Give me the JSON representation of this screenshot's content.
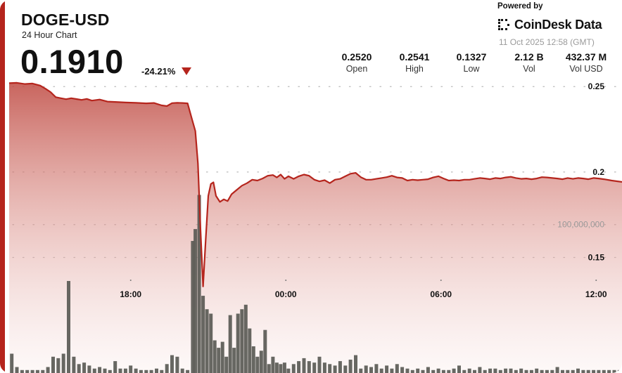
{
  "header": {
    "symbol": "DOGE-USD",
    "subtitle": "24 Hour Chart",
    "price": "0.1910",
    "change": "-24.21%",
    "change_direction": "down"
  },
  "branding": {
    "powered_by": "Powered by",
    "name": "CoinDesk Data",
    "timestamp": "11 Oct 2025 12:58 (GMT)"
  },
  "stats": [
    {
      "value": "0.2520",
      "label": "Open"
    },
    {
      "value": "0.2541",
      "label": "High"
    },
    {
      "value": "0.1327",
      "label": "Low"
    },
    {
      "value": "2.12 B",
      "label": "Vol"
    },
    {
      "value": "432.37 M",
      "label": "Vol USD"
    }
  ],
  "colors": {
    "accent": "#b5251d",
    "line": "#b5251d",
    "volume_bar": "#5a5a55"
  },
  "chart_data": {
    "type": "area",
    "title": "",
    "xlabel": "",
    "ylabel": "",
    "price_axis": {
      "ticks": [
        0.25,
        0.2,
        0.15
      ],
      "tick_labels": [
        "0.25",
        "0.2",
        "0.15"
      ],
      "ylim": [
        0.1095,
        0.2575
      ]
    },
    "volume_axis": {
      "ticks": [
        100000000
      ],
      "tick_labels": [
        "100,000,000"
      ],
      "ylim": [
        0,
        133000000
      ]
    },
    "x_ticks": [
      "18:00",
      "00:00",
      "06:00",
      "12:00"
    ],
    "x_tick_hours": [
      18,
      24,
      30,
      36
    ],
    "x_range_hours": [
      13.3,
      37.0
    ],
    "grid": true,
    "series": [
      {
        "values": [
          [
            13.3,
            0.252
          ],
          [
            13.6,
            0.2522
          ],
          [
            13.9,
            0.2515
          ],
          [
            14.2,
            0.2518
          ],
          [
            14.5,
            0.2506
          ],
          [
            14.7,
            0.2488
          ],
          [
            14.9,
            0.2468
          ],
          [
            15.1,
            0.2438
          ],
          [
            15.3,
            0.2432
          ],
          [
            15.5,
            0.2426
          ],
          [
            15.7,
            0.2432
          ],
          [
            15.9,
            0.2427
          ],
          [
            16.1,
            0.2422
          ],
          [
            16.3,
            0.2428
          ],
          [
            16.5,
            0.2418
          ],
          [
            16.8,
            0.2424
          ],
          [
            17.1,
            0.2412
          ],
          [
            17.4,
            0.241
          ],
          [
            17.8,
            0.2407
          ],
          [
            18.2,
            0.2405
          ],
          [
            18.6,
            0.2402
          ],
          [
            18.9,
            0.2404
          ],
          [
            19.2,
            0.239
          ],
          [
            19.4,
            0.2386
          ],
          [
            19.6,
            0.2403
          ],
          [
            19.8,
            0.2405
          ],
          [
            20.0,
            0.2404
          ],
          [
            20.2,
            0.2402
          ],
          [
            20.35,
            0.232
          ],
          [
            20.5,
            0.224
          ],
          [
            20.6,
            0.205
          ],
          [
            20.7,
            0.166
          ],
          [
            20.8,
            0.133
          ],
          [
            20.9,
            0.16
          ],
          [
            21.0,
            0.186
          ],
          [
            21.1,
            0.193
          ],
          [
            21.2,
            0.194
          ],
          [
            21.3,
            0.186
          ],
          [
            21.45,
            0.1825
          ],
          [
            21.6,
            0.184
          ],
          [
            21.75,
            0.183
          ],
          [
            21.9,
            0.187
          ],
          [
            22.1,
            0.1895
          ],
          [
            22.3,
            0.192
          ],
          [
            22.5,
            0.1935
          ],
          [
            22.7,
            0.1955
          ],
          [
            22.9,
            0.195
          ],
          [
            23.1,
            0.1962
          ],
          [
            23.3,
            0.1978
          ],
          [
            23.5,
            0.1982
          ],
          [
            23.65,
            0.1968
          ],
          [
            23.8,
            0.1985
          ],
          [
            23.95,
            0.196
          ],
          [
            24.1,
            0.1975
          ],
          [
            24.3,
            0.196
          ],
          [
            24.5,
            0.1975
          ],
          [
            24.7,
            0.1985
          ],
          [
            24.9,
            0.1978
          ],
          [
            25.1,
            0.1955
          ],
          [
            25.3,
            0.1945
          ],
          [
            25.5,
            0.1952
          ],
          [
            25.7,
            0.1935
          ],
          [
            25.9,
            0.1955
          ],
          [
            26.1,
            0.196
          ],
          [
            26.3,
            0.1975
          ],
          [
            26.5,
            0.199
          ],
          [
            26.7,
            0.1995
          ],
          [
            26.9,
            0.197
          ],
          [
            27.1,
            0.1955
          ],
          [
            27.3,
            0.1955
          ],
          [
            27.5,
            0.196
          ],
          [
            27.7,
            0.1965
          ],
          [
            27.9,
            0.197
          ],
          [
            28.1,
            0.1978
          ],
          [
            28.3,
            0.1968
          ],
          [
            28.5,
            0.1965
          ],
          [
            28.7,
            0.195
          ],
          [
            28.9,
            0.1955
          ],
          [
            29.1,
            0.1952
          ],
          [
            29.3,
            0.1955
          ],
          [
            29.5,
            0.1958
          ],
          [
            29.7,
            0.1968
          ],
          [
            29.9,
            0.1975
          ],
          [
            30.1,
            0.1962
          ],
          [
            30.3,
            0.195
          ],
          [
            30.5,
            0.1952
          ],
          [
            30.7,
            0.195
          ],
          [
            30.9,
            0.1955
          ],
          [
            31.1,
            0.1955
          ],
          [
            31.3,
            0.196
          ],
          [
            31.5,
            0.1965
          ],
          [
            31.7,
            0.1962
          ],
          [
            31.9,
            0.1958
          ],
          [
            32.1,
            0.1965
          ],
          [
            32.3,
            0.1962
          ],
          [
            32.5,
            0.1968
          ],
          [
            32.7,
            0.1972
          ],
          [
            32.9,
            0.1965
          ],
          [
            33.1,
            0.196
          ],
          [
            33.3,
            0.1962
          ],
          [
            33.5,
            0.1958
          ],
          [
            33.7,
            0.1962
          ],
          [
            33.9,
            0.197
          ],
          [
            34.1,
            0.1968
          ],
          [
            34.3,
            0.1965
          ],
          [
            34.5,
            0.1962
          ],
          [
            34.7,
            0.1958
          ],
          [
            34.9,
            0.1965
          ],
          [
            35.1,
            0.196
          ],
          [
            35.3,
            0.1965
          ],
          [
            35.5,
            0.1962
          ],
          [
            35.7,
            0.1958
          ],
          [
            35.9,
            0.1965
          ],
          [
            36.1,
            0.1962
          ],
          [
            36.3,
            0.1958
          ],
          [
            36.6,
            0.195
          ],
          [
            37.0,
            0.1942
          ]
        ]
      }
    ],
    "volume": [
      [
        13.4,
        13
      ],
      [
        13.6,
        4
      ],
      [
        13.8,
        2
      ],
      [
        14.0,
        2
      ],
      [
        14.2,
        2
      ],
      [
        14.4,
        2
      ],
      [
        14.6,
        2
      ],
      [
        14.8,
        4
      ],
      [
        15.0,
        11
      ],
      [
        15.2,
        10
      ],
      [
        15.4,
        13
      ],
      [
        15.6,
        62
      ],
      [
        15.8,
        11
      ],
      [
        16.0,
        6
      ],
      [
        16.2,
        7
      ],
      [
        16.4,
        5
      ],
      [
        16.6,
        3
      ],
      [
        16.8,
        4
      ],
      [
        17.0,
        3
      ],
      [
        17.2,
        2
      ],
      [
        17.4,
        8
      ],
      [
        17.6,
        3
      ],
      [
        17.8,
        3
      ],
      [
        18.0,
        5
      ],
      [
        18.2,
        3
      ],
      [
        18.4,
        2
      ],
      [
        18.6,
        2
      ],
      [
        18.8,
        2
      ],
      [
        19.0,
        3
      ],
      [
        19.2,
        2
      ],
      [
        19.4,
        6
      ],
      [
        19.6,
        12
      ],
      [
        19.8,
        11
      ],
      [
        20.0,
        3
      ],
      [
        20.2,
        2
      ],
      [
        20.4,
        89
      ],
      [
        20.5,
        97
      ],
      [
        20.65,
        120
      ],
      [
        20.8,
        52
      ],
      [
        20.95,
        43
      ],
      [
        21.1,
        40
      ],
      [
        21.25,
        22
      ],
      [
        21.4,
        17
      ],
      [
        21.55,
        21
      ],
      [
        21.7,
        11
      ],
      [
        21.85,
        39
      ],
      [
        22.0,
        17
      ],
      [
        22.15,
        40
      ],
      [
        22.3,
        43
      ],
      [
        22.45,
        46
      ],
      [
        22.6,
        30
      ],
      [
        22.75,
        18
      ],
      [
        22.9,
        11
      ],
      [
        23.05,
        15
      ],
      [
        23.2,
        29
      ],
      [
        23.35,
        6
      ],
      [
        23.5,
        11
      ],
      [
        23.65,
        7
      ],
      [
        23.8,
        6
      ],
      [
        23.95,
        7
      ],
      [
        24.1,
        3
      ],
      [
        24.3,
        6
      ],
      [
        24.5,
        8
      ],
      [
        24.7,
        10
      ],
      [
        24.9,
        8
      ],
      [
        25.1,
        7
      ],
      [
        25.3,
        11
      ],
      [
        25.5,
        7
      ],
      [
        25.7,
        6
      ],
      [
        25.9,
        5
      ],
      [
        26.1,
        8
      ],
      [
        26.3,
        5
      ],
      [
        26.5,
        9
      ],
      [
        26.7,
        12
      ],
      [
        26.9,
        3
      ],
      [
        27.1,
        5
      ],
      [
        27.3,
        4
      ],
      [
        27.5,
        6
      ],
      [
        27.7,
        3
      ],
      [
        27.9,
        5
      ],
      [
        28.1,
        3
      ],
      [
        28.3,
        6
      ],
      [
        28.5,
        4
      ],
      [
        28.7,
        3
      ],
      [
        28.9,
        2
      ],
      [
        29.1,
        3
      ],
      [
        29.3,
        2
      ],
      [
        29.5,
        4
      ],
      [
        29.7,
        2
      ],
      [
        29.9,
        3
      ],
      [
        30.1,
        2
      ],
      [
        30.3,
        2
      ],
      [
        30.5,
        3
      ],
      [
        30.7,
        5
      ],
      [
        30.9,
        2
      ],
      [
        31.1,
        3
      ],
      [
        31.3,
        2
      ],
      [
        31.5,
        4
      ],
      [
        31.7,
        2
      ],
      [
        31.9,
        3
      ],
      [
        32.1,
        3
      ],
      [
        32.3,
        2
      ],
      [
        32.5,
        3
      ],
      [
        32.7,
        3
      ],
      [
        32.9,
        2
      ],
      [
        33.1,
        3
      ],
      [
        33.3,
        2
      ],
      [
        33.5,
        2
      ],
      [
        33.7,
        3
      ],
      [
        33.9,
        2
      ],
      [
        34.1,
        2
      ],
      [
        34.3,
        2
      ],
      [
        34.5,
        4
      ],
      [
        34.7,
        2
      ],
      [
        34.9,
        2
      ],
      [
        35.1,
        2
      ],
      [
        35.3,
        3
      ],
      [
        35.5,
        2
      ],
      [
        35.7,
        2
      ],
      [
        35.9,
        2
      ],
      [
        36.1,
        2
      ],
      [
        36.3,
        2
      ],
      [
        36.5,
        2
      ],
      [
        36.7,
        2
      ],
      [
        36.9,
        2
      ]
    ],
    "volume_unit": "millions"
  }
}
